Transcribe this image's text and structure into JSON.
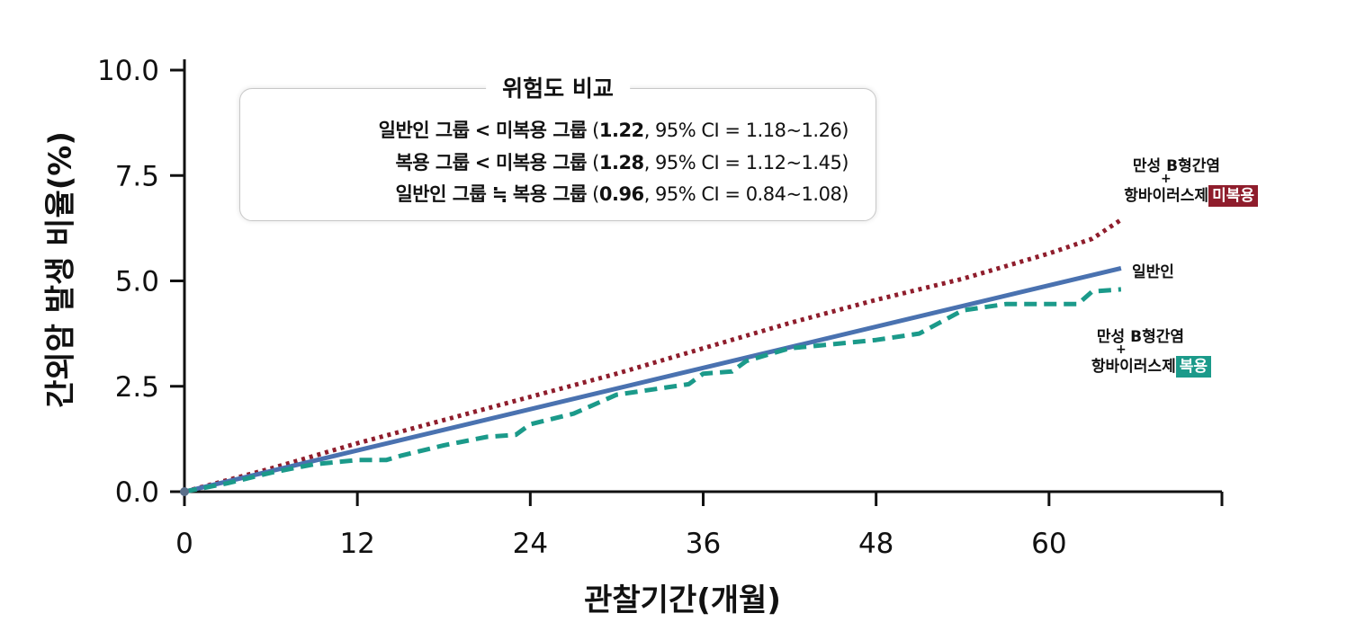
{
  "chart_data": {
    "type": "line",
    "title": "",
    "xlabel": "관찰기간(개월)",
    "ylabel": "간외암 발생 비율(%)",
    "xlim": [
      0,
      72
    ],
    "ylim": [
      0,
      10
    ],
    "x_ticks": [
      0,
      12,
      24,
      36,
      48,
      60
    ],
    "y_ticks": [
      0.0,
      2.5,
      5.0,
      7.5,
      10.0
    ],
    "x_tick_labels": [
      "0",
      "12",
      "24",
      "36",
      "48",
      "60"
    ],
    "y_tick_labels": [
      "0.0",
      "2.5",
      "5.0",
      "7.5",
      "10.0"
    ],
    "grid": false,
    "series": [
      {
        "label_line1": "만성 B형간염",
        "label_plus": "+",
        "label_line2": "항바이러스제",
        "label_badge": "미복용",
        "color": "#8f1d2c",
        "style": "dotted",
        "x": [
          0,
          6,
          12,
          18,
          24,
          30,
          36,
          42,
          48,
          54,
          60,
          63,
          65
        ],
        "y": [
          0,
          0.55,
          1.15,
          1.7,
          2.25,
          2.8,
          3.4,
          4.0,
          4.55,
          5.05,
          5.65,
          6.0,
          6.45
        ]
      },
      {
        "label_line1": "일반인",
        "color": "#4a72b0",
        "style": "solid",
        "x": [
          0,
          65
        ],
        "y": [
          0,
          5.3
        ]
      },
      {
        "label_line1": "만성 B형간염",
        "label_plus": "+",
        "label_line2": "항바이러스제",
        "label_badge": "복용",
        "color": "#1b9a8a",
        "style": "dashed",
        "x": [
          0,
          3,
          6,
          9,
          12,
          14,
          15,
          18,
          21,
          23,
          24,
          27,
          30,
          33,
          35,
          36,
          38,
          39,
          42,
          45,
          48,
          51,
          54,
          57,
          60,
          62,
          63,
          65
        ],
        "y": [
          0,
          0.2,
          0.45,
          0.65,
          0.75,
          0.75,
          0.85,
          1.1,
          1.3,
          1.35,
          1.6,
          1.85,
          2.3,
          2.45,
          2.55,
          2.8,
          2.85,
          3.1,
          3.4,
          3.5,
          3.6,
          3.75,
          4.3,
          4.45,
          4.45,
          4.45,
          4.75,
          4.8
        ]
      }
    ],
    "legend": "none",
    "annotations": {
      "box_title": "위험도 비교",
      "rows": [
        {
          "left": "일반인 그룹",
          "op": "<",
          "right": "미복용 그룹",
          "pre": "(",
          "value": "1.22",
          "post": ", 95% CI = 1.18~1.26)"
        },
        {
          "left": "복용 그룹",
          "op": "<",
          "right": "미복용 그룹",
          "pre": "(",
          "value": "1.28",
          "post": ", 95% CI = 1.12~1.45)"
        },
        {
          "left": "일반인 그룹",
          "op": "≒",
          "right": "복용 그룹",
          "pre": "(",
          "value": "0.96",
          "post": ", 95% CI = 0.84~1.08)"
        }
      ]
    }
  }
}
